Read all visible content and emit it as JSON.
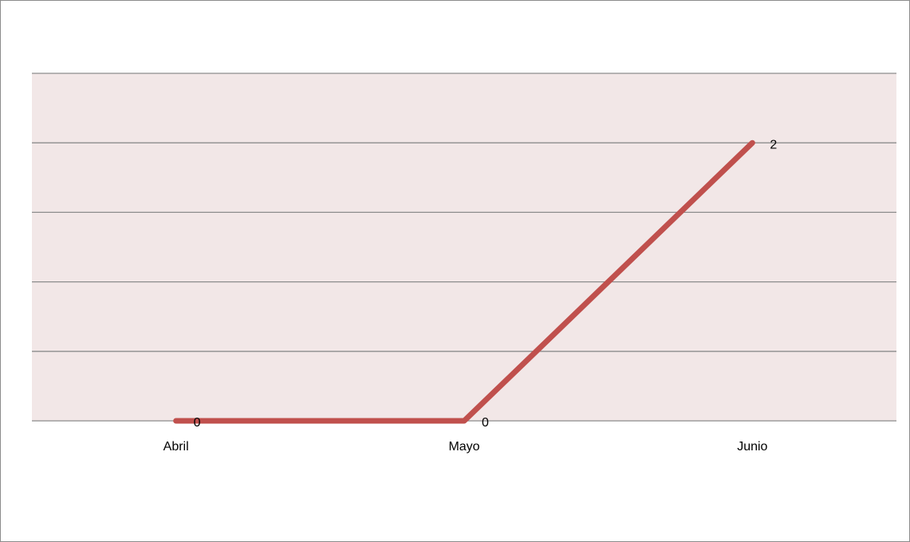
{
  "chart_data": {
    "type": "line",
    "categories": [
      "Abril",
      "Mayo",
      "Junio"
    ],
    "series": [
      {
        "color": "#c0504d",
        "values": [
          0,
          0,
          2
        ]
      }
    ],
    "ylim": [
      0,
      2.5
    ],
    "yticks": [
      0,
      0.5,
      1,
      1.5,
      2,
      2.5
    ],
    "grid": true,
    "plot_background": "#f2e7e7"
  }
}
